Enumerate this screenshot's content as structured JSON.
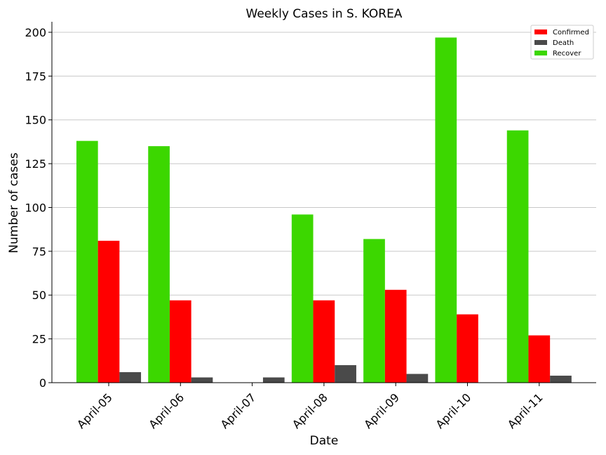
{
  "chart_data": {
    "type": "bar",
    "title": "Weekly Cases in S. KOREA",
    "xlabel": "Date",
    "ylabel": "Number of cases",
    "ylim": [
      0,
      206
    ],
    "yticks": [
      0,
      25,
      50,
      75,
      100,
      125,
      150,
      175,
      200
    ],
    "grid": "horizontal",
    "legend_position": "top-right",
    "categories": [
      "April-05",
      "April-06",
      "April-07",
      "April-08",
      "April-09",
      "April-10",
      "April-11"
    ],
    "series": [
      {
        "name": "Recover",
        "color": "#3cd700",
        "values": [
          138,
          135,
          0,
          96,
          82,
          197,
          144
        ]
      },
      {
        "name": "Confirmed",
        "color": "#ff0000",
        "values": [
          81,
          47,
          0,
          47,
          53,
          39,
          27
        ]
      },
      {
        "name": "Death",
        "color": "#4a4a4a",
        "values": [
          6,
          3,
          3,
          10,
          5,
          0,
          4
        ]
      }
    ],
    "legend_order": [
      "Confirmed",
      "Death",
      "Recover"
    ]
  }
}
